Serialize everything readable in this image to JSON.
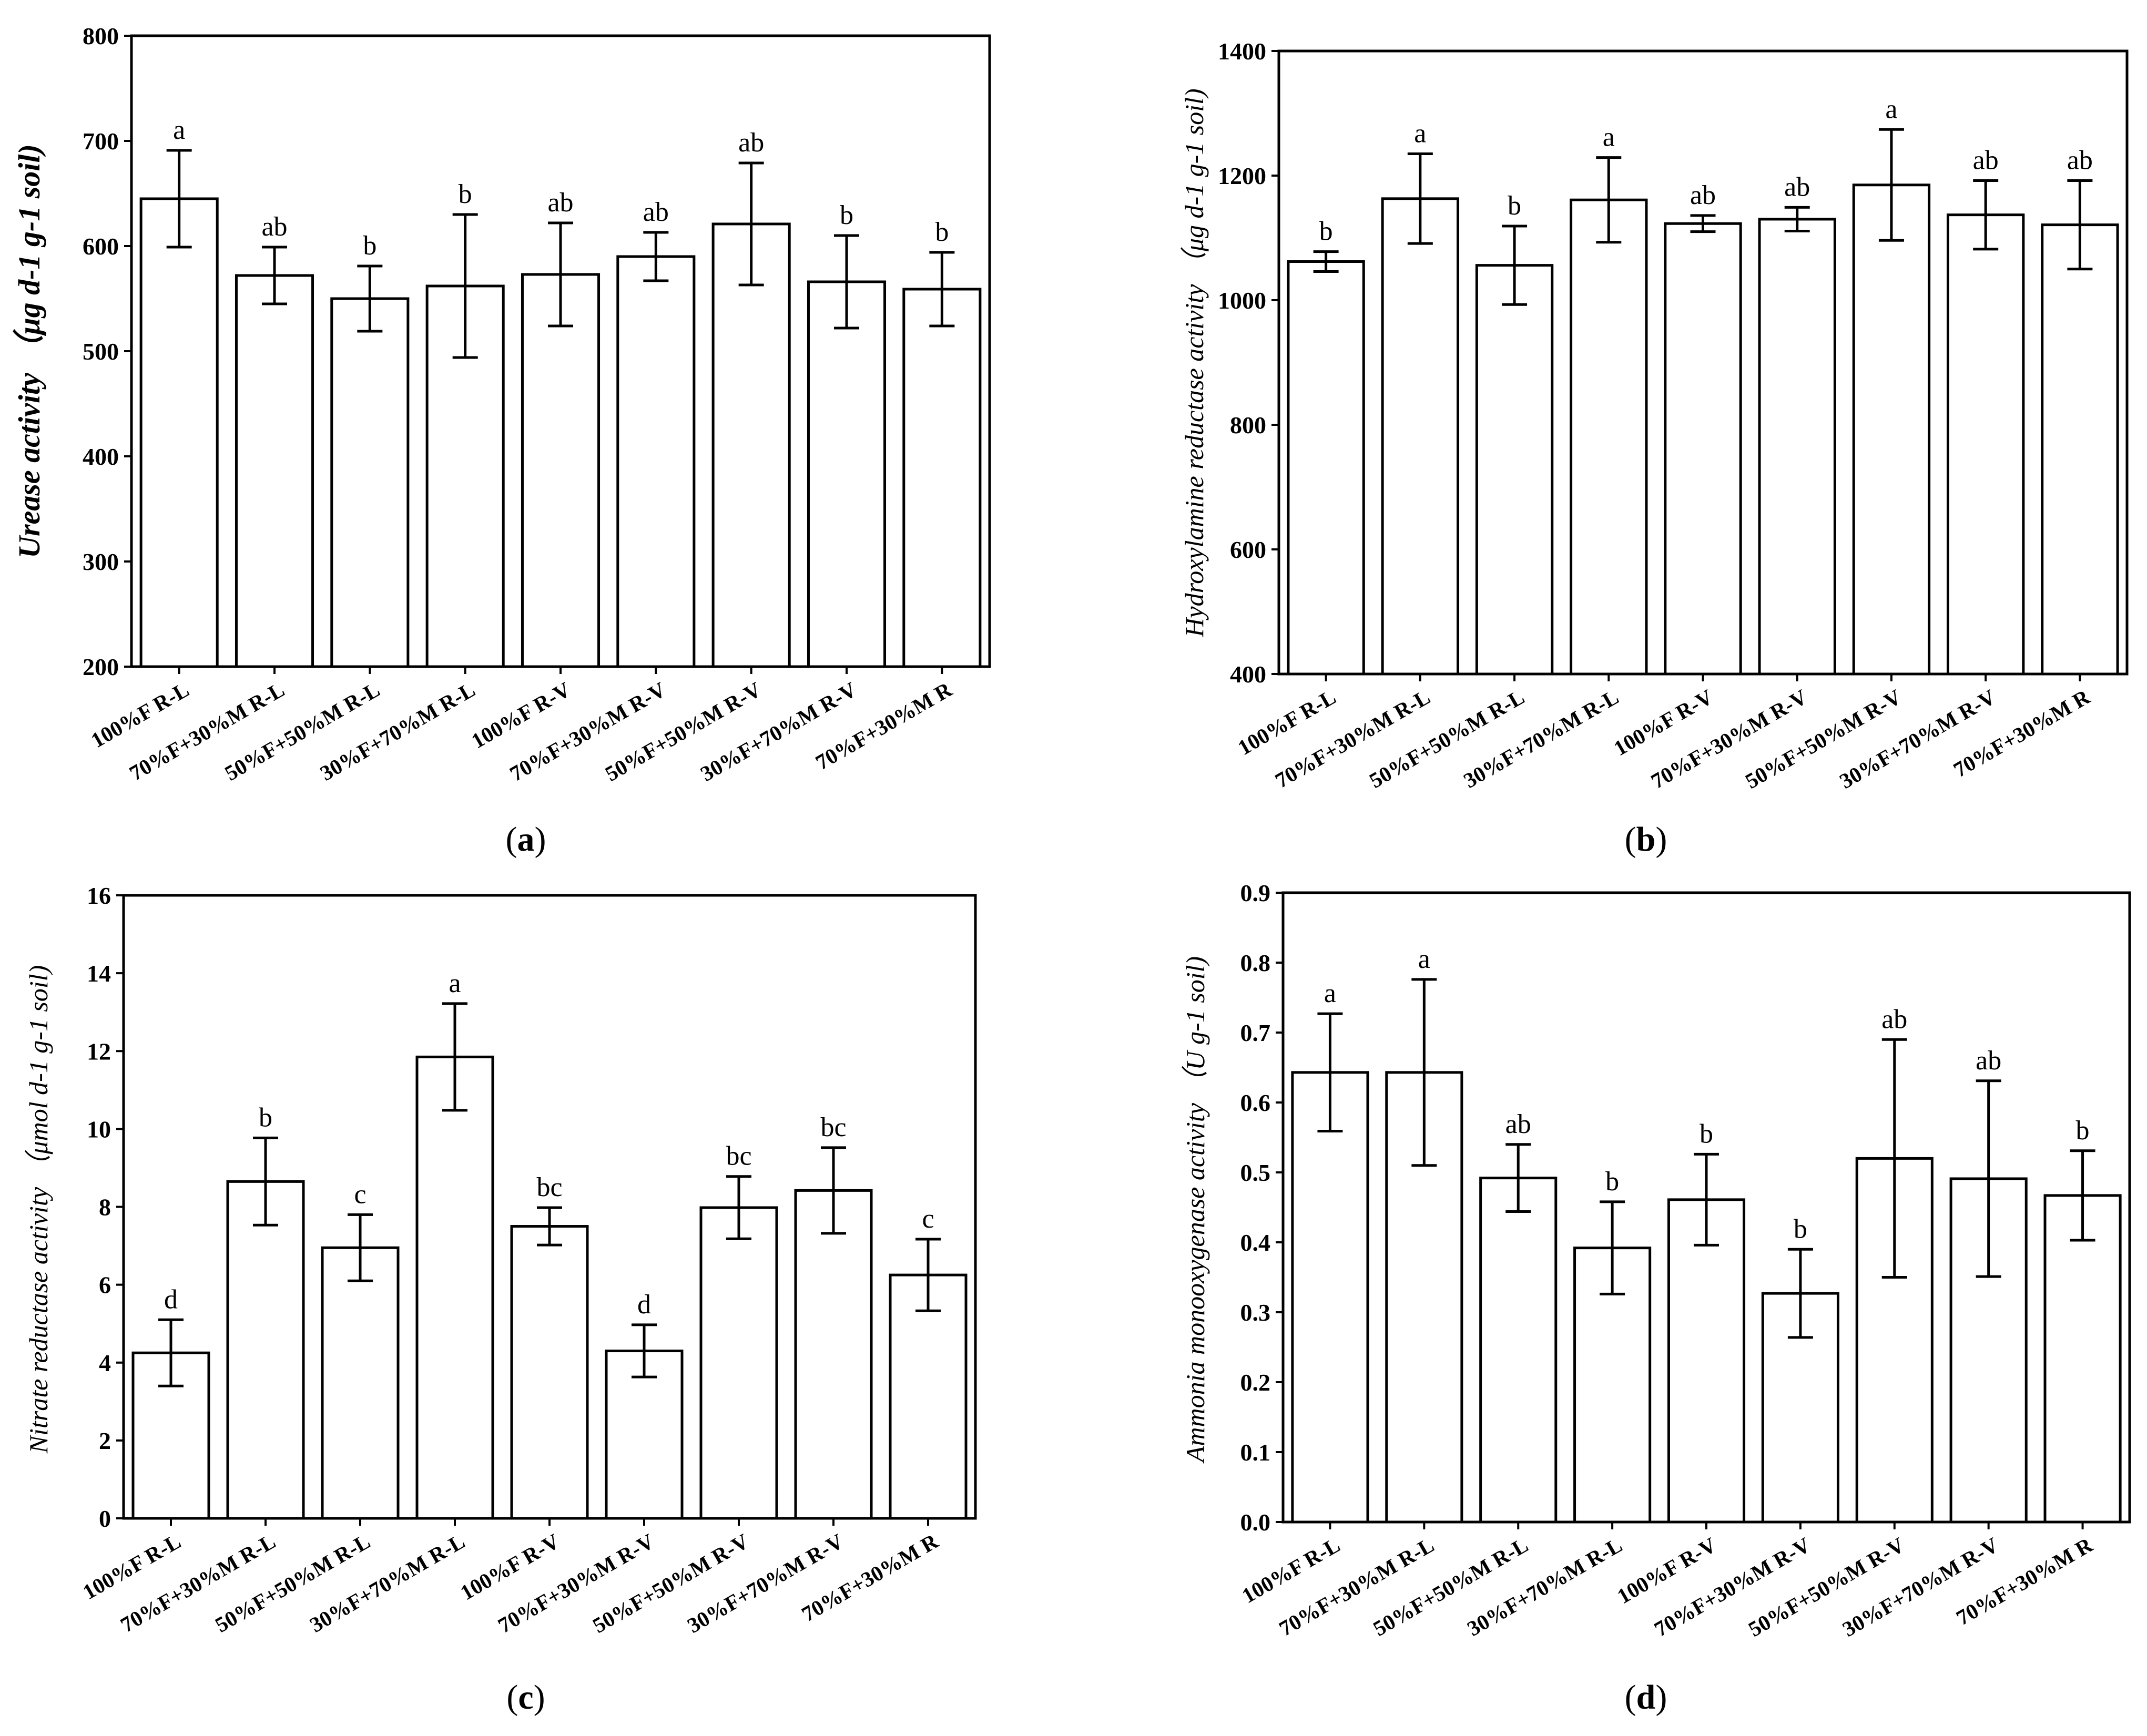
{
  "chart_data": [
    {
      "type": "bar",
      "panel_label": "(a)",
      "panel_letter": "a",
      "ylabel": "Urease activity",
      "ylabel_unit": "（μg d-1 g-1 soil)",
      "ylim": [
        200,
        800
      ],
      "yticks": [
        200,
        300,
        400,
        500,
        600,
        700,
        800
      ],
      "categories": [
        "100%F R-L",
        "70%F+30%M R-L",
        "50%F+50%M R-L",
        "30%F+70%M R-L",
        "100%F R-V",
        "70%F+30%M R-V",
        "50%F+50%M R-V",
        "30%F+70%M R-V",
        "70%F+30%M R"
      ],
      "values": [
        645,
        572,
        550,
        562,
        573,
        590,
        621,
        566,
        559
      ],
      "errors": [
        46,
        27,
        31,
        68,
        49,
        23,
        58,
        44,
        35
      ],
      "significance": [
        "a",
        "ab",
        "b",
        "b",
        "ab",
        "ab",
        "ab",
        "b",
        "b"
      ]
    },
    {
      "type": "bar",
      "panel_label": "(b)",
      "panel_letter": "b",
      "ylabel": "Hydroxylamine reductase activity",
      "ylabel_unit": "（μg d-1 g-1 soil)",
      "ylim": [
        400,
        1400
      ],
      "yticks": [
        400,
        600,
        800,
        1000,
        1200,
        1400
      ],
      "categories": [
        "100%F R-L",
        "70%F+30%M R-L",
        "50%F+50%M R-L",
        "30%F+70%M R-L",
        "100%F R-V",
        "70%F+30%M R-V",
        "50%F+50%M R-V",
        "30%F+70%M R-V",
        "70%F+30%M R"
      ],
      "values": [
        1062,
        1163,
        1056,
        1161,
        1123,
        1130,
        1185,
        1137,
        1121
      ],
      "errors": [
        16,
        72,
        63,
        68,
        13,
        19,
        89,
        55,
        71
      ],
      "significance": [
        "b",
        "a",
        "b",
        "a",
        "ab",
        "ab",
        "a",
        "ab",
        "ab"
      ]
    },
    {
      "type": "bar",
      "panel_label": "(c)",
      "panel_letter": "c",
      "ylabel": "Nitrate reductase activity",
      "ylabel_unit": "（μmol d-1 g-1 soil)",
      "ylim": [
        0,
        16
      ],
      "yticks": [
        0,
        2,
        4,
        6,
        8,
        10,
        12,
        14,
        16
      ],
      "categories": [
        "100%F R-L",
        "70%F+30%M R-L",
        "50%F+50%M R-L",
        "30%F+70%M R-L",
        "100%F R-V",
        "70%F+30%M R-V",
        "50%F+50%M R-V",
        "30%F+70%M R-V",
        "70%F+30%M R"
      ],
      "values": [
        4.25,
        8.65,
        6.95,
        11.85,
        7.5,
        4.3,
        7.98,
        8.42,
        6.25
      ],
      "errors": [
        0.85,
        1.12,
        0.85,
        1.37,
        0.48,
        0.67,
        0.8,
        1.1,
        0.92
      ],
      "significance": [
        "d",
        "b",
        "c",
        "a",
        "bc",
        "d",
        "bc",
        "bc",
        "c"
      ]
    },
    {
      "type": "bar",
      "panel_label": "(d)",
      "panel_letter": "d",
      "ylabel": "Ammonia monooxygenase activity",
      "ylabel_unit": "（U g-1 soil)",
      "ylim": [
        0.0,
        0.9
      ],
      "yticks": [
        0.0,
        0.1,
        0.2,
        0.3,
        0.4,
        0.5,
        0.6,
        0.7,
        0.8,
        0.9
      ],
      "categories": [
        "100%F R-L",
        "70%F+30%M R-L",
        "50%F+50%M R-L",
        "30%F+70%M R-L",
        "100%F R-V",
        "70%F+30%M R-V",
        "50%F+50%M R-V",
        "30%F+70%M R-V",
        "70%F+30%M R"
      ],
      "values": [
        0.643,
        0.643,
        0.492,
        0.392,
        0.461,
        0.327,
        0.52,
        0.491,
        0.467
      ],
      "errors": [
        0.084,
        0.133,
        0.048,
        0.066,
        0.065,
        0.063,
        0.17,
        0.14,
        0.064
      ],
      "significance": [
        "a",
        "a",
        "ab",
        "b",
        "b",
        "b",
        "ab",
        "ab",
        "b"
      ]
    }
  ]
}
